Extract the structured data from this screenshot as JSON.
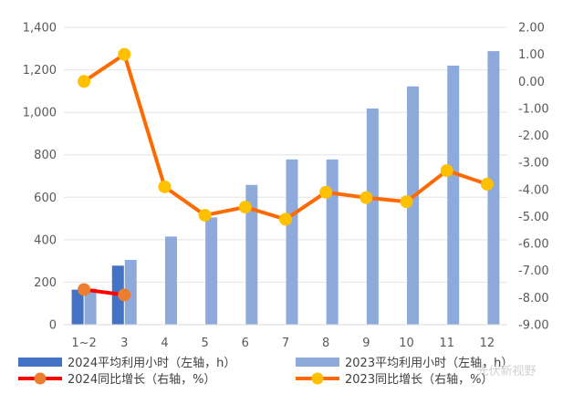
{
  "chart_data": {
    "type": "bar+line",
    "categories": [
      "1~2",
      "3",
      "4",
      "5",
      "6",
      "7",
      "8",
      "9",
      "10",
      "11",
      "12"
    ],
    "bar_series": [
      {
        "name": "2024平均利用小时（左轴，h）",
        "axis": "left",
        "color": "#4472c4",
        "values": [
          165,
          278,
          null,
          null,
          null,
          null,
          null,
          null,
          null,
          null,
          null
        ]
      },
      {
        "name": "2023平均利用小时（左轴，h）",
        "axis": "left",
        "color": "#8eaadb",
        "values": [
          170,
          305,
          415,
          505,
          658,
          778,
          778,
          1018,
          1122,
          1220,
          1288
        ]
      }
    ],
    "line_series": [
      {
        "name": "2024同比增长（右轴，%）",
        "axis": "right",
        "line_color": "#ff0000",
        "marker_color": "#ed7d31",
        "values": [
          -7.7,
          -7.9,
          null,
          null,
          null,
          null,
          null,
          null,
          null,
          null,
          null
        ]
      },
      {
        "name": "2023同比增长（右轴，%）",
        "axis": "right",
        "line_color": "#ff6a00",
        "marker_color": "#ffc000",
        "values": [
          0.0,
          1.0,
          -3.9,
          -4.95,
          -4.65,
          -5.1,
          -4.1,
          -4.3,
          -4.45,
          -3.3,
          -3.8
        ]
      }
    ],
    "left_axis": {
      "ylim": [
        0,
        1400
      ],
      "ticks": [
        "0",
        "200",
        "400",
        "600",
        "800",
        "1,000",
        "1,200",
        "1,400"
      ]
    },
    "right_axis": {
      "ylim": [
        -9,
        2
      ],
      "ticks": [
        "-9.00",
        "-8.00",
        "-7.00",
        "-6.00",
        "-5.00",
        "-4.00",
        "-3.00",
        "-2.00",
        "-1.00",
        "0.00",
        "1.00",
        "2.00"
      ]
    },
    "grid": true,
    "legend_position": "bottom"
  },
  "watermark": "光伏新视野"
}
